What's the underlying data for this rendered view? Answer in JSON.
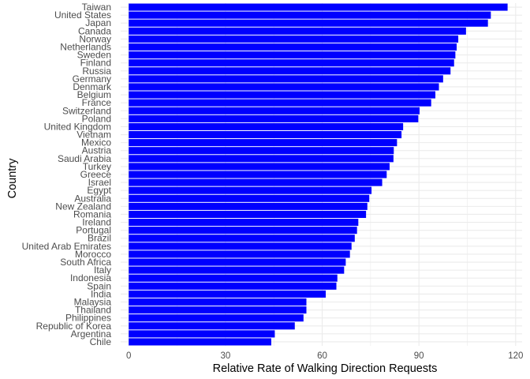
{
  "chart_data": {
    "type": "bar",
    "orientation": "horizontal",
    "xlabel": "Relative Rate of Walking Direction Requests",
    "ylabel": "Country",
    "xlim": [
      -2.5,
      122
    ],
    "xticks": [
      0,
      30,
      60,
      90,
      120
    ],
    "grid": true,
    "bar_color": "#0000ff",
    "categories": [
      "Taiwan",
      "United States",
      "Japan",
      "Canada",
      "Norway",
      "Netherlands",
      "Sweden",
      "Finland",
      "Russia",
      "Germany",
      "Denmark",
      "Belgium",
      "France",
      "Switzerland",
      "Poland",
      "United Kingdom",
      "Vietnam",
      "Mexico",
      "Austria",
      "Saudi Arabia",
      "Turkey",
      "Greece",
      "Israel",
      "Egypt",
      "Australia",
      "New Zealand",
      "Romania",
      "Ireland",
      "Portugal",
      "Brazil",
      "United Arab Emirates",
      "Morocco",
      "South Africa",
      "Italy",
      "Indonesia",
      "Spain",
      "India",
      "Malaysia",
      "Thailand",
      "Philippines",
      "Republic of Korea",
      "Argentina",
      "Chile"
    ],
    "values": [
      117.5,
      112.3,
      111.4,
      104.6,
      102.2,
      101.7,
      101.3,
      100.9,
      99.8,
      97.5,
      96.2,
      95.1,
      93.8,
      90.2,
      89.8,
      85.1,
      84.6,
      83.2,
      82.2,
      82.1,
      80.9,
      80,
      78.6,
      75.3,
      74.6,
      74,
      73.6,
      71.2,
      70.8,
      70.1,
      69.1,
      68.6,
      67.3,
      66.8,
      64.7,
      64.4,
      61.1,
      55.1,
      55.1,
      54.2,
      51.5,
      45.3,
      44.2
    ]
  }
}
